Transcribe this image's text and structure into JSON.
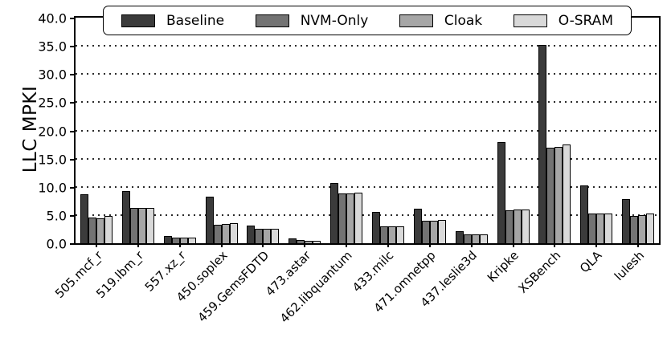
{
  "chart_data": {
    "type": "bar",
    "title": "",
    "xlabel": "",
    "ylabel": "LLC MPKI",
    "ylim": [
      0,
      40
    ],
    "ytick_step": 5,
    "yticks": [
      {
        "value": 0,
        "label": "0.0"
      },
      {
        "value": 5,
        "label": "5.0"
      },
      {
        "value": 10,
        "label": "10.0"
      },
      {
        "value": 15,
        "label": "15.0"
      },
      {
        "value": 20,
        "label": "20.0"
      },
      {
        "value": 25,
        "label": "25.0"
      },
      {
        "value": 30,
        "label": "30.0"
      },
      {
        "value": 35,
        "label": "35.0"
      },
      {
        "value": 40,
        "label": "40.0"
      }
    ],
    "grid": "horizontal-dotted",
    "legend_position": "top-inside",
    "categories": [
      "505.mcf_r",
      "519.lbm_r",
      "557.xz_r",
      "450.soplex",
      "459.GemsFDTD",
      "473.astar",
      "462.libquantum",
      "433.milc",
      "471.omnetpp",
      "437.leslie3d",
      "Kripke",
      "XSBench",
      "QLA",
      "lulesh"
    ],
    "series": [
      {
        "name": "Baseline",
        "color": "#3b3b3b",
        "values": [
          8.8,
          9.3,
          1.3,
          8.4,
          3.2,
          0.9,
          10.7,
          5.6,
          6.2,
          2.2,
          18.0,
          35.3,
          10.3,
          7.9
        ]
      },
      {
        "name": "NVM-Only",
        "color": "#737373",
        "values": [
          4.6,
          6.3,
          1.0,
          3.4,
          2.7,
          0.6,
          8.9,
          3.0,
          4.1,
          1.6,
          5.9,
          17.0,
          5.3,
          4.9
        ]
      },
      {
        "name": "Cloak",
        "color": "#a6a6a6",
        "values": [
          4.5,
          6.3,
          1.0,
          3.5,
          2.7,
          0.5,
          8.9,
          3.0,
          4.1,
          1.7,
          6.1,
          17.2,
          5.3,
          5.0
        ]
      },
      {
        "name": "O-SRAM",
        "color": "#d9d9d9",
        "values": [
          4.9,
          6.4,
          1.1,
          3.7,
          2.7,
          0.5,
          9.0,
          3.1,
          4.2,
          1.7,
          6.1,
          17.6,
          5.4,
          5.3
        ]
      }
    ],
    "colors": {
      "bar_edge": "#000000",
      "grid": "#2b2b2b",
      "background": "#ffffff"
    }
  }
}
